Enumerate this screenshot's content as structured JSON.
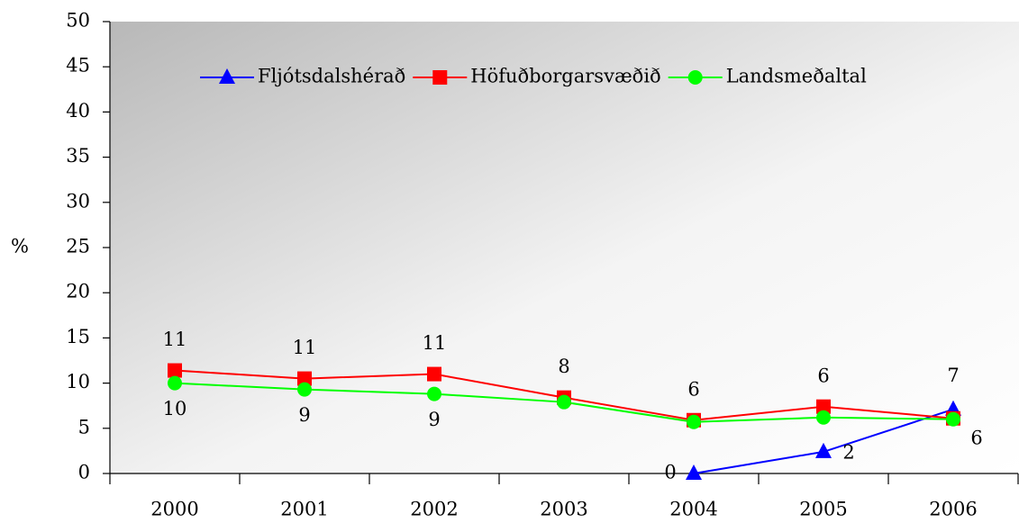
{
  "chart_data": {
    "type": "line",
    "categories": [
      "2000",
      "2001",
      "2002",
      "2003",
      "2004",
      "2005",
      "2006"
    ],
    "y_label": "%",
    "ylim": [
      0,
      50
    ],
    "yticks": [
      0,
      5,
      10,
      15,
      20,
      25,
      30,
      35,
      40,
      45,
      50
    ],
    "legend": "top",
    "series": [
      {
        "name": "Fljótsdalshérað",
        "color": "#0000ff",
        "marker": "triangle",
        "values": [
          null,
          null,
          null,
          null,
          0,
          2.4,
          7.1
        ],
        "value_labels": [
          null,
          null,
          null,
          null,
          "0",
          "2",
          "7"
        ]
      },
      {
        "name": "Höfuðborgarsvæðið",
        "color": "#ff0000",
        "marker": "square",
        "values": [
          11.4,
          10.5,
          11.0,
          8.4,
          5.9,
          7.4,
          6.1
        ],
        "value_labels": [
          "11",
          "11",
          "11",
          "8",
          "6",
          null,
          null
        ]
      },
      {
        "name": "Landsmeðaltal",
        "color": "#00ff00",
        "marker": "circle",
        "values": [
          10.0,
          9.3,
          8.8,
          7.9,
          5.7,
          6.2,
          6.0
        ],
        "value_labels": [
          "10",
          "9",
          "9",
          null,
          null,
          "6",
          "6"
        ]
      }
    ]
  }
}
